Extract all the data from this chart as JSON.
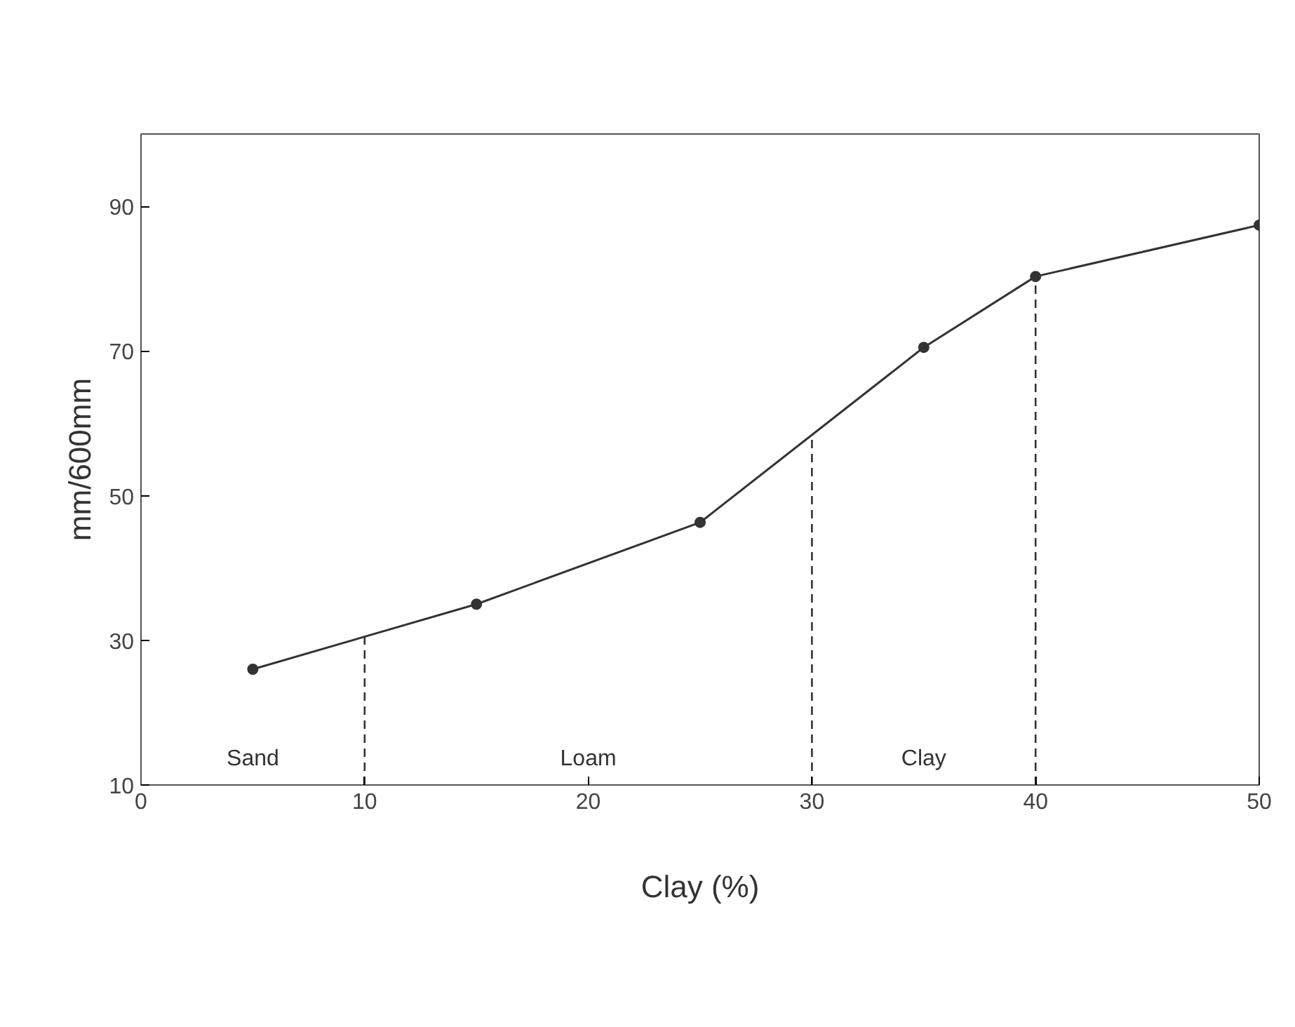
{
  "chart_data": {
    "type": "line",
    "xlabel": "Clay (%)",
    "ylabel": "mm/600mm",
    "x": [
      5,
      15,
      25,
      35,
      40,
      50
    ],
    "series": [
      {
        "color": "#333333",
        "values": [
          26,
          35,
          46.3,
          70.5,
          80.3,
          87.4
        ]
      }
    ],
    "marker": "circle",
    "line_style": "solid",
    "xlim": [
      0,
      50
    ],
    "ylim": [
      10,
      100
    ],
    "xticks": [
      0,
      10,
      20,
      30,
      40,
      50
    ],
    "yticks": [
      10,
      30,
      50,
      70,
      90
    ],
    "grid": false,
    "ref_lines": [
      {
        "axis": "x",
        "value": 10,
        "line_style": "dashed",
        "color": "#333333"
      },
      {
        "axis": "x",
        "value": 30,
        "line_style": "dashed",
        "color": "#333333"
      },
      {
        "axis": "x",
        "value": 40,
        "line_style": "dashed",
        "color": "#333333"
      }
    ],
    "annotations": [
      "Sand",
      "Loam",
      "Clay"
    ]
  }
}
